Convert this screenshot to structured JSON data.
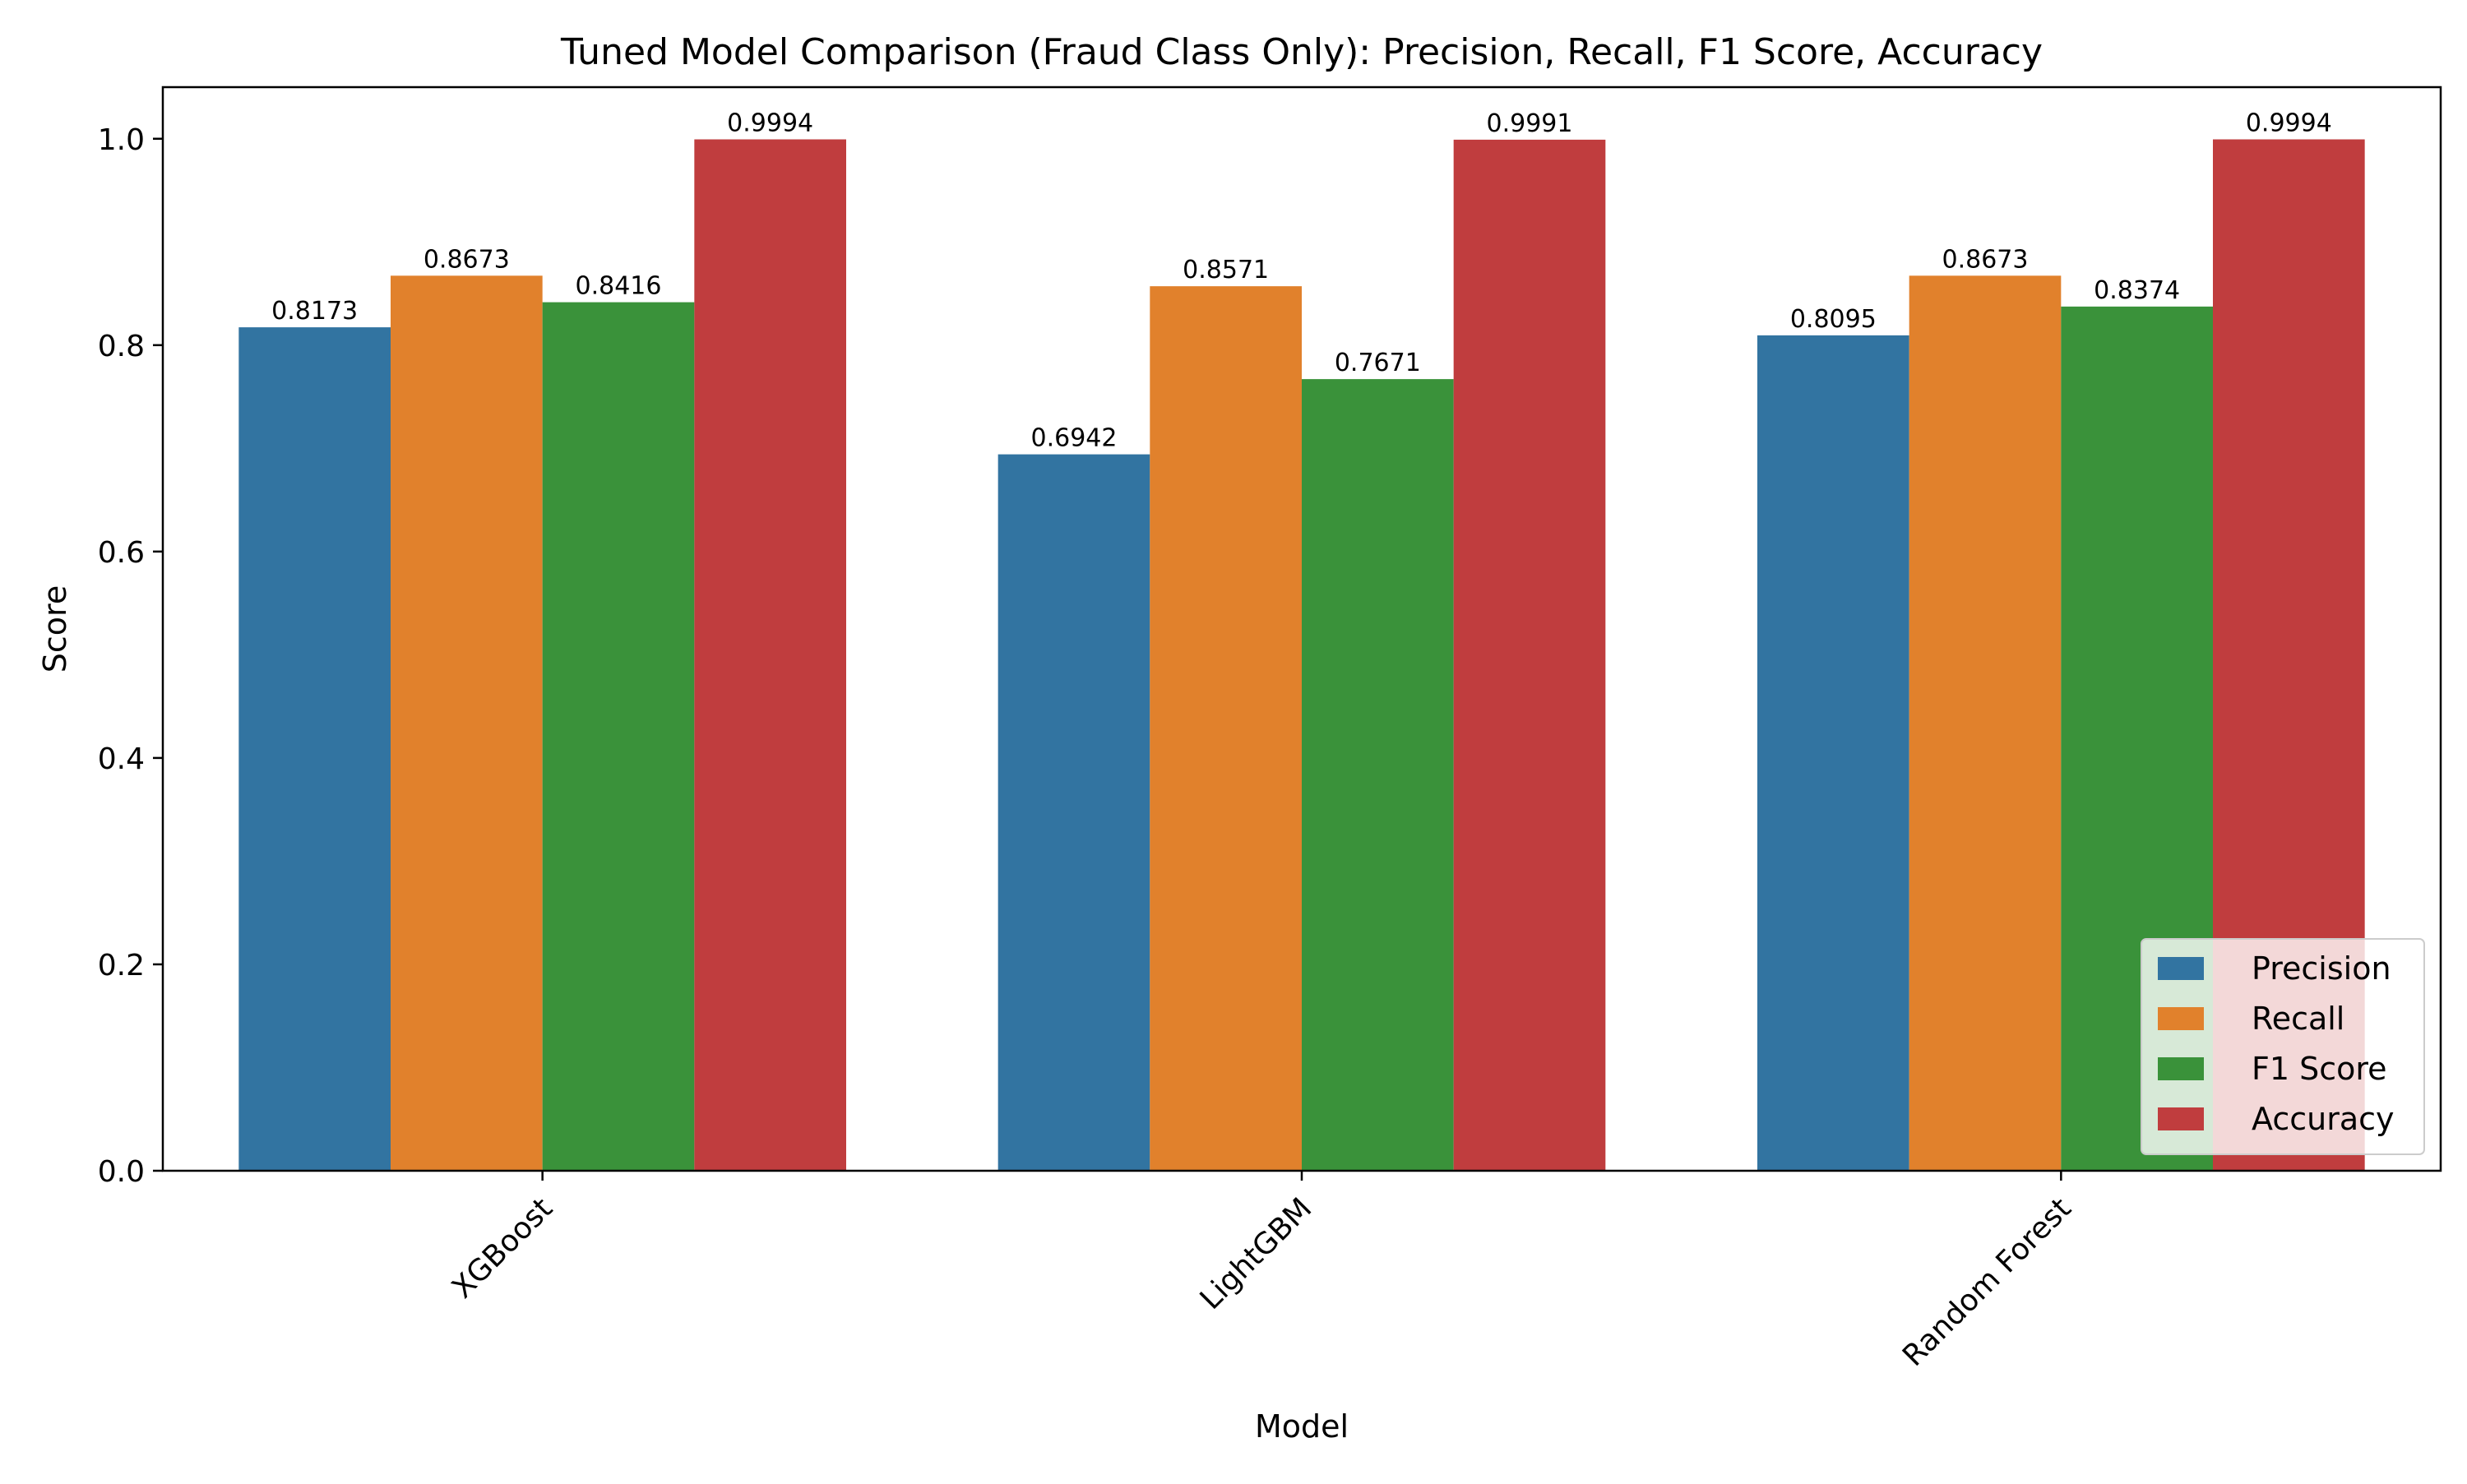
{
  "chart_data": {
    "type": "bar",
    "title": "Tuned Model Comparison (Fraud Class Only): Precision, Recall, F1 Score, Accuracy",
    "xlabel": "Model",
    "ylabel": "Score",
    "ylim": [
      0,
      1.05
    ],
    "yticks": [
      "0.0",
      "0.2",
      "0.4",
      "0.6",
      "0.8",
      "1.0"
    ],
    "categories": [
      "XGBoost",
      "LightGBM",
      "Random Forest"
    ],
    "series": [
      {
        "name": "Precision",
        "color": "#3274a1",
        "values": [
          0.8173,
          0.6942,
          0.8095
        ],
        "labels": [
          "0.8173",
          "0.6942",
          "0.8095"
        ]
      },
      {
        "name": "Recall",
        "color": "#e1812c",
        "values": [
          0.8673,
          0.8571,
          0.8673
        ],
        "labels": [
          "0.8673",
          "0.8571",
          "0.8673"
        ]
      },
      {
        "name": "F1 Score",
        "color": "#3a923a",
        "values": [
          0.8416,
          0.7671,
          0.8374
        ],
        "labels": [
          "0.8416",
          "0.7671",
          "0.8374"
        ]
      },
      {
        "name": "Accuracy",
        "color": "#c03d3e",
        "values": [
          0.9994,
          0.9991,
          0.9994
        ],
        "labels": [
          "0.9994",
          "0.9991",
          "0.9994"
        ]
      }
    ],
    "legend": "bottom-right",
    "grid": false
  }
}
